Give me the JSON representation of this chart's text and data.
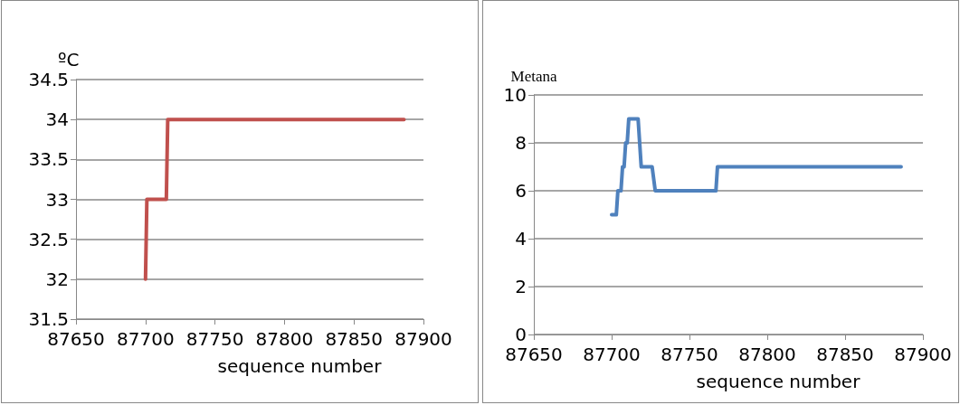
{
  "chart_data": [
    {
      "type": "line",
      "ylabel": "ºC",
      "xlabel": "sequence number",
      "series": [
        {
          "color": "#c0504d",
          "x": [
            87700,
            87701,
            87715,
            87716,
            87886
          ],
          "values": [
            32,
            33,
            33,
            34,
            34
          ]
        }
      ],
      "xlim": [
        87650,
        87900
      ],
      "xticks": [
        87650,
        87700,
        87750,
        87800,
        87850,
        87900
      ],
      "ylim": [
        31.5,
        34.5
      ],
      "yticks": [
        31.5,
        32,
        32.5,
        33,
        33.5,
        34,
        34.5
      ],
      "grid": "y",
      "marker": "none",
      "line_style": "solid"
    },
    {
      "type": "line",
      "ylabel": "Metana",
      "xlabel": "sequence number",
      "series": [
        {
          "color": "#4f81bd",
          "x": [
            87700,
            87703,
            87704,
            87706,
            87707,
            87708,
            87709,
            87710,
            87711,
            87717,
            87719,
            87726,
            87728,
            87767,
            87768,
            87886
          ],
          "values": [
            5,
            5,
            6,
            6,
            7,
            7,
            8,
            8,
            9,
            9,
            7,
            7,
            6,
            6,
            7,
            7
          ]
        }
      ],
      "xlim": [
        87650,
        87900
      ],
      "xticks": [
        87650,
        87700,
        87750,
        87800,
        87850,
        87900
      ],
      "ylim": [
        0,
        10
      ],
      "yticks": [
        0,
        2,
        4,
        6,
        8,
        10
      ],
      "grid": "y",
      "marker": "none",
      "line_style": "solid"
    }
  ]
}
